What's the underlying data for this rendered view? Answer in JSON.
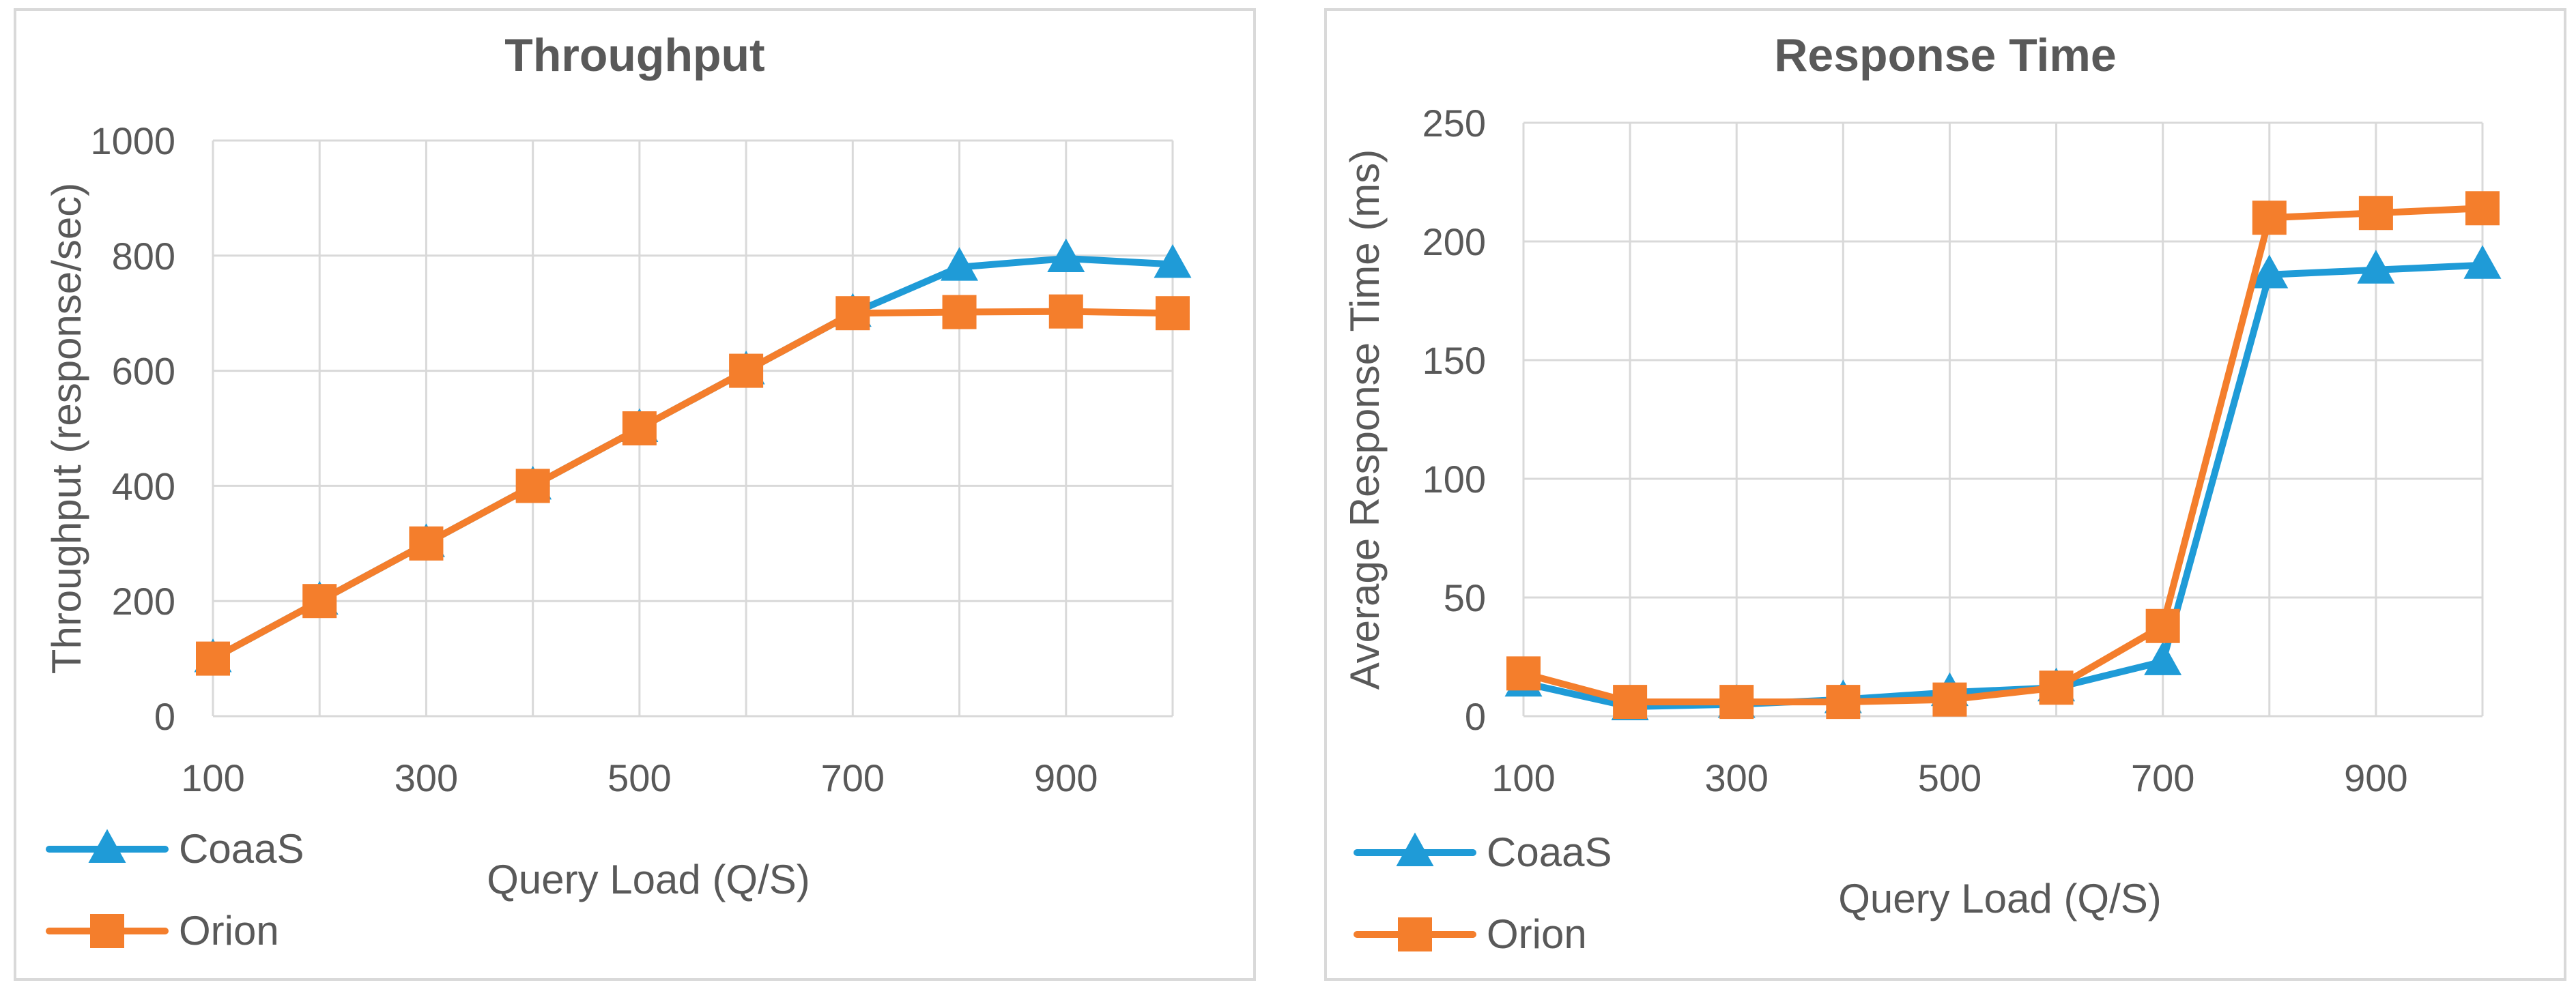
{
  "chart_data": [
    {
      "type": "line",
      "title": "Throughput",
      "xlabel": "Query Load (Q/S)",
      "ylabel": "Throughput  (response/sec)",
      "x": [
        100,
        200,
        300,
        400,
        500,
        600,
        700,
        800,
        900,
        1000
      ],
      "xticks": [
        100,
        300,
        500,
        700,
        900
      ],
      "ylim": [
        0,
        1000
      ],
      "yticks": [
        0,
        200,
        400,
        600,
        800,
        1000
      ],
      "grid": true,
      "legend_position": "bottom-left",
      "series": [
        {
          "name": "CoaaS",
          "color": "#1F9BD7",
          "marker": "triangle",
          "values": [
            100,
            200,
            300,
            400,
            500,
            600,
            700,
            780,
            795,
            785
          ]
        },
        {
          "name": "Orion",
          "color": "#F47E2C",
          "marker": "square",
          "values": [
            100,
            200,
            300,
            400,
            500,
            600,
            700,
            702,
            703,
            700
          ]
        }
      ]
    },
    {
      "type": "line",
      "title": "Response Time",
      "xlabel": "Query Load (Q/S)",
      "ylabel": "Average Response Time (ms)",
      "x": [
        100,
        200,
        300,
        400,
        500,
        600,
        700,
        800,
        900,
        1000
      ],
      "xticks": [
        100,
        300,
        500,
        700,
        900
      ],
      "ylim": [
        0,
        250
      ],
      "yticks": [
        0,
        50,
        100,
        150,
        200,
        250
      ],
      "grid": true,
      "legend_position": "bottom-left",
      "series": [
        {
          "name": "CoaaS",
          "color": "#1F9BD7",
          "marker": "triangle",
          "values": [
            14,
            4,
            5,
            7,
            10,
            12,
            23,
            186,
            188,
            190
          ]
        },
        {
          "name": "Orion",
          "color": "#F47E2C",
          "marker": "square",
          "values": [
            18,
            6,
            6,
            6,
            7,
            12,
            38,
            210,
            212,
            214
          ]
        }
      ]
    }
  ]
}
